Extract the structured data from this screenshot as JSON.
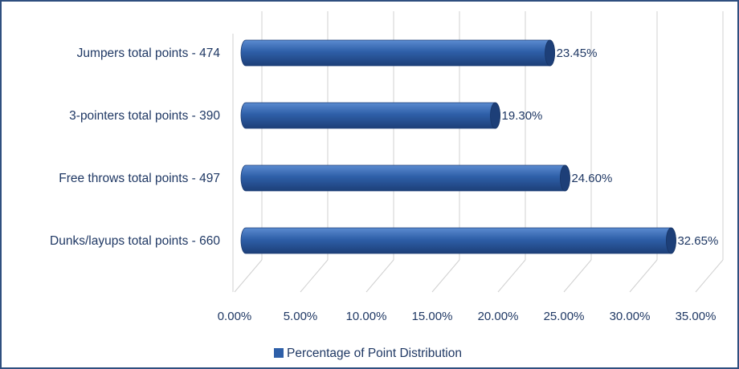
{
  "chart_data": {
    "type": "bar",
    "orientation": "horizontal",
    "style": "3d-cylinder",
    "categories": [
      "Jumpers total points - 474",
      "3-pointers total points - 390",
      "Free throws total points - 497",
      "Dunks/layups total points - 660"
    ],
    "series": [
      {
        "name": "Percentage of Point Distribution",
        "values": [
          23.45,
          19.3,
          24.6,
          32.65
        ],
        "labels": [
          "23.45%",
          "19.30%",
          "24.60%",
          "32.65%"
        ]
      }
    ],
    "xlim": [
      0,
      35
    ],
    "xticks": [
      "0.00%",
      "5.00%",
      "10.00%",
      "15.00%",
      "20.00%",
      "25.00%",
      "30.00%",
      "35.00%"
    ],
    "grid": true,
    "legend_position": "bottom",
    "colors": {
      "bar": "#2e5fa8",
      "bar_light": "#5b8bd0",
      "bar_dark": "#1d3f78",
      "text": "#1f3864",
      "grid": "#d0d0d0",
      "border": "#2f4f7f"
    }
  }
}
